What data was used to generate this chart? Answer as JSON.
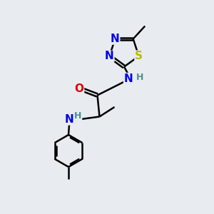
{
  "bg_color": "#e8ecf0",
  "atom_colors": {
    "C": "#000000",
    "N": "#0000ee",
    "O": "#dd0000",
    "S": "#bbbb00",
    "H": "#4a9090"
  },
  "bond_width": 1.8,
  "font_size_atom": 11,
  "font_size_h": 9
}
